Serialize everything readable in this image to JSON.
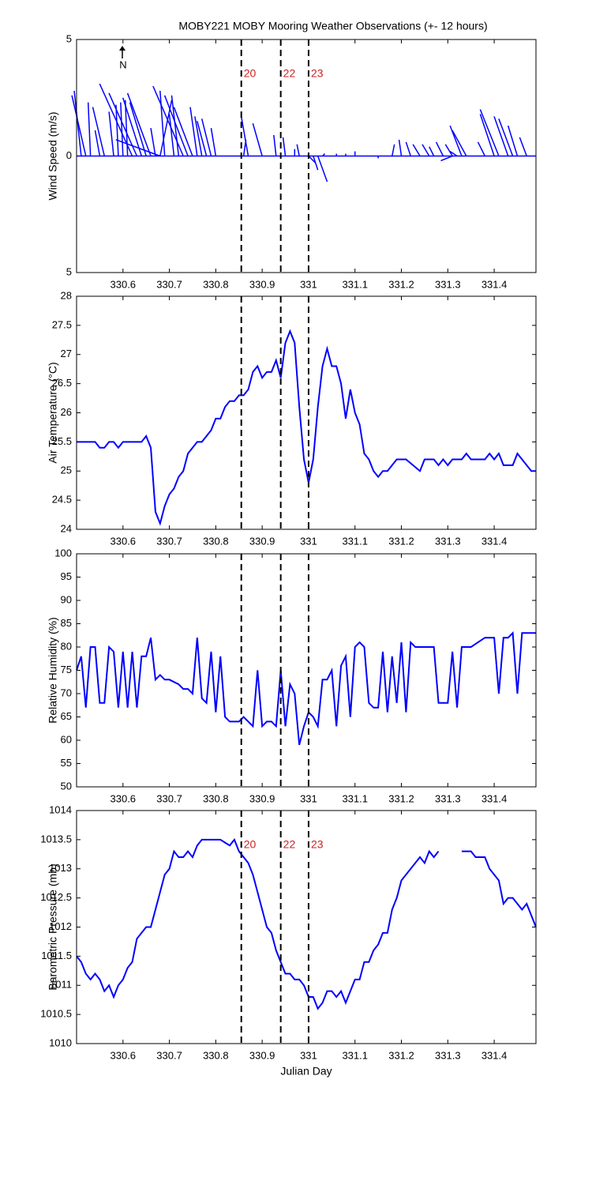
{
  "chart_data": [
    {
      "type": "stick",
      "title": "MOBY221 MOBY Mooring Weather Observations (+- 12 hours)",
      "ylabel": "Wind Speed (m/s)",
      "annotation": "N",
      "color": "#0000ff",
      "xlim": [
        330.5,
        331.49
      ],
      "xticks": [
        330.6,
        330.7,
        330.8,
        330.9,
        331,
        331.1,
        331.2,
        331.3,
        331.4
      ],
      "ylim": [
        -5,
        5
      ],
      "yticks": [
        {
          "value": -5,
          "label": "5"
        },
        0,
        5
      ],
      "vlines": [
        330.855,
        330.94,
        331.0
      ],
      "vline_labels": [
        "20",
        "22",
        "23"
      ],
      "x": [
        330.51,
        330.52,
        330.53,
        330.55,
        330.56,
        330.58,
        330.59,
        330.6,
        330.61,
        330.62,
        330.63,
        330.64,
        330.65,
        330.66,
        330.67,
        330.68,
        330.68,
        330.69,
        330.71,
        330.72,
        330.73,
        330.74,
        330.75,
        330.76,
        330.77,
        330.78,
        330.79,
        330.8,
        330.86,
        330.87,
        330.9,
        330.93,
        330.95,
        330.97,
        330.98,
        331.0,
        331.01,
        331.02,
        331.03,
        331.06,
        331.08,
        331.1,
        331.15,
        331.18,
        331.2,
        331.22,
        331.24,
        331.26,
        331.27,
        331.29,
        331.31,
        331.31,
        331.32,
        331.33,
        331.34,
        331.38,
        331.4,
        331.41,
        331.43,
        331.44,
        331.45,
        331.47
      ],
      "u": [
        -0.3,
        -0.6,
        -0.1,
        -0.2,
        -0.5,
        -0.2,
        -0.1,
        -0.1,
        -0.1,
        -1.4,
        -1.2,
        -0.8,
        -0.7,
        -1.0,
        -0.2,
        0.5,
        -1.9,
        -0.2,
        -0.2,
        -0.3,
        -1.3,
        -1.0,
        -0.8,
        -0.3,
        -0.3,
        -0.4,
        -0.4,
        -0.2,
        0.1,
        -0.3,
        -0.4,
        -0.1,
        -0.1,
        0.0,
        -0.1,
        0.3,
        0.2,
        0.4,
        0.1,
        0.0,
        0.0,
        0.0,
        0.0,
        0.1,
        -0.1,
        -0.2,
        -0.3,
        -0.3,
        -0.2,
        -0.3,
        -0.3,
        -0.5,
        -0.3,
        -0.5,
        -0.6,
        -0.3,
        -0.6,
        -0.8,
        -0.6,
        -0.6,
        -0.4,
        -0.3
      ],
      "v": [
        2.8,
        2.6,
        2.3,
        1.1,
        2.1,
        1.9,
        2.2,
        2.3,
        2.4,
        3.1,
        2.7,
        2.5,
        2.3,
        2.7,
        1.2,
        2.4,
        0.7,
        2.8,
        1.8,
        2.6,
        3.0,
        2.6,
        2.1,
        2.1,
        1.7,
        1.5,
        1.6,
        1.2,
        0.7,
        1.7,
        1.4,
        0.9,
        0.8,
        0.3,
        0.5,
        -0.3,
        -0.6,
        -1.1,
        0.1,
        0.1,
        0.1,
        0.2,
        -0.1,
        0.5,
        0.7,
        0.6,
        0.5,
        0.5,
        0.4,
        0.6,
        0.5,
        -0.2,
        0.2,
        1.3,
        1.1,
        0.6,
        1.8,
        2.0,
        1.7,
        1.6,
        1.3,
        0.8
      ]
    },
    {
      "type": "line",
      "ylabel": "Air Temperature (°C)",
      "color": "#0000ff",
      "xlim": [
        330.5,
        331.49
      ],
      "xticks": [
        330.6,
        330.7,
        330.8,
        330.9,
        331,
        331.1,
        331.2,
        331.3,
        331.4
      ],
      "ylim": [
        24,
        28
      ],
      "yticks": [
        24,
        24.5,
        25,
        25.5,
        26,
        26.5,
        27,
        27.5,
        28
      ],
      "vlines": [
        330.855,
        330.94,
        331.0
      ],
      "x": [
        330.5,
        330.54,
        330.55,
        330.56,
        330.57,
        330.58,
        330.59,
        330.6,
        330.64,
        330.65,
        330.66,
        330.67,
        330.68,
        330.69,
        330.7,
        330.71,
        330.72,
        330.73,
        330.74,
        330.75,
        330.76,
        330.77,
        330.78,
        330.79,
        330.8,
        330.81,
        330.82,
        330.83,
        330.84,
        330.85,
        330.86,
        330.87,
        330.88,
        330.89,
        330.9,
        330.91,
        330.92,
        330.93,
        330.94,
        330.95,
        330.96,
        330.97,
        330.98,
        330.99,
        331.0,
        331.01,
        331.02,
        331.03,
        331.04,
        331.05,
        331.06,
        331.07,
        331.08,
        331.09,
        331.1,
        331.11,
        331.12,
        331.13,
        331.14,
        331.15,
        331.16,
        331.17,
        331.18,
        331.19,
        331.21,
        331.24,
        331.25,
        331.27,
        331.28,
        331.29,
        331.3,
        331.31,
        331.33,
        331.34,
        331.35,
        331.38,
        331.39,
        331.4,
        331.41,
        331.42,
        331.44,
        331.45,
        331.48,
        331.49
      ],
      "values": [
        25.5,
        25.5,
        25.4,
        25.4,
        25.5,
        25.5,
        25.4,
        25.5,
        25.5,
        25.6,
        25.4,
        24.3,
        24.1,
        24.4,
        24.6,
        24.7,
        24.9,
        25.0,
        25.3,
        25.4,
        25.5,
        25.5,
        25.6,
        25.7,
        25.9,
        25.9,
        26.1,
        26.2,
        26.2,
        26.3,
        26.3,
        26.4,
        26.7,
        26.8,
        26.6,
        26.7,
        26.7,
        26.9,
        26.6,
        27.2,
        27.4,
        27.2,
        26.1,
        25.2,
        24.8,
        25.2,
        26.1,
        26.8,
        27.1,
        26.8,
        26.8,
        26.5,
        25.9,
        26.4,
        26.0,
        25.8,
        25.3,
        25.2,
        25.0,
        24.9,
        25.0,
        25.0,
        25.1,
        25.2,
        25.2,
        25.0,
        25.2,
        25.2,
        25.1,
        25.2,
        25.1,
        25.2,
        25.2,
        25.3,
        25.2,
        25.2,
        25.3,
        25.2,
        25.3,
        25.1,
        25.1,
        25.3,
        25.0,
        25.0
      ]
    },
    {
      "type": "line",
      "ylabel": "Relative Humidity (%)",
      "color": "#0000ff",
      "xlim": [
        330.5,
        331.49
      ],
      "xticks": [
        330.6,
        330.7,
        330.8,
        330.9,
        331,
        331.1,
        331.2,
        331.3,
        331.4
      ],
      "ylim": [
        50,
        100
      ],
      "yticks": [
        50,
        55,
        60,
        65,
        70,
        75,
        80,
        85,
        90,
        95,
        100
      ],
      "vlines": [
        330.855,
        330.94,
        331.0
      ],
      "x": [
        330.5,
        330.51,
        330.52,
        330.53,
        330.54,
        330.55,
        330.56,
        330.57,
        330.58,
        330.59,
        330.6,
        330.61,
        330.62,
        330.63,
        330.64,
        330.65,
        330.66,
        330.67,
        330.68,
        330.69,
        330.7,
        330.72,
        330.73,
        330.74,
        330.75,
        330.76,
        330.77,
        330.78,
        330.79,
        330.8,
        330.81,
        330.82,
        330.83,
        330.85,
        330.86,
        330.88,
        330.89,
        330.9,
        330.91,
        330.92,
        330.93,
        330.94,
        330.95,
        330.96,
        330.97,
        330.98,
        330.99,
        331.0,
        331.01,
        331.02,
        331.03,
        331.04,
        331.05,
        331.06,
        331.07,
        331.08,
        331.09,
        331.1,
        331.11,
        331.12,
        331.13,
        331.14,
        331.15,
        331.16,
        331.17,
        331.18,
        331.19,
        331.2,
        331.21,
        331.22,
        331.23,
        331.27,
        331.28,
        331.3,
        331.31,
        331.32,
        331.33,
        331.35,
        331.38,
        331.4,
        331.41,
        331.42,
        331.43,
        331.44,
        331.45,
        331.46,
        331.49
      ],
      "values": [
        75,
        78,
        67,
        80,
        80,
        68,
        68,
        80,
        79,
        67,
        79,
        67,
        79,
        67,
        78,
        78,
        82,
        73,
        74,
        73,
        73,
        72,
        71,
        71,
        70,
        82,
        69,
        68,
        79,
        66,
        78,
        65,
        64,
        64,
        65,
        63,
        75,
        63,
        64,
        64,
        63,
        75,
        63,
        72,
        70,
        59,
        63,
        66,
        65,
        63,
        73,
        73,
        75,
        63,
        76,
        78,
        65,
        80,
        81,
        80,
        68,
        67,
        67,
        79,
        66,
        78,
        68,
        81,
        66,
        81,
        80,
        80,
        68,
        68,
        79,
        67,
        80,
        80,
        82,
        82,
        70,
        82,
        82,
        83,
        70,
        83,
        83
      ]
    },
    {
      "type": "line",
      "ylabel": "Barometric Pressure (mb)",
      "xlabel": "Julian Day",
      "color": "#0000ff",
      "xlim": [
        330.5,
        331.49
      ],
      "xticks": [
        330.6,
        330.7,
        330.8,
        330.9,
        331,
        331.1,
        331.2,
        331.3,
        331.4
      ],
      "ylim": [
        1010,
        1014
      ],
      "yticks": [
        1010,
        1010.5,
        1011,
        1011.5,
        1012,
        1012.5,
        1013,
        1013.5,
        1014
      ],
      "vlines": [
        330.855,
        330.94,
        331.0
      ],
      "vline_labels": [
        "20",
        "22",
        "23"
      ],
      "x": [
        330.5,
        330.51,
        330.52,
        330.53,
        330.54,
        330.55,
        330.56,
        330.57,
        330.58,
        330.59,
        330.6,
        330.61,
        330.62,
        330.63,
        330.64,
        330.65,
        330.66,
        330.67,
        330.68,
        330.69,
        330.7,
        330.71,
        330.72,
        330.73,
        330.74,
        330.75,
        330.76,
        330.77,
        330.78,
        330.81,
        330.83,
        330.84,
        330.85,
        330.86,
        330.87,
        330.88,
        330.89,
        330.9,
        330.91,
        330.92,
        330.93,
        330.94,
        330.95,
        330.96,
        330.97,
        330.98,
        330.99,
        331.0,
        331.01,
        331.02,
        331.03,
        331.04,
        331.05,
        331.06,
        331.07,
        331.08,
        331.09,
        331.1,
        331.11,
        331.12,
        331.13,
        331.14,
        331.15,
        331.16,
        331.17,
        331.18,
        331.19,
        331.2,
        331.21,
        331.22,
        331.23,
        331.24,
        331.25,
        331.26,
        331.27,
        331.28,
        331.3,
        331.33,
        331.35,
        331.36,
        331.38,
        331.39,
        331.41,
        331.42,
        331.43,
        331.44,
        331.46,
        331.47,
        331.49
      ],
      "values": [
        1011.5,
        1011.4,
        1011.2,
        1011.1,
        1011.2,
        1011.1,
        1010.9,
        1011.0,
        1010.8,
        1011.0,
        1011.1,
        1011.3,
        1011.4,
        1011.8,
        1011.9,
        1012.0,
        1012.0,
        1012.3,
        1012.6,
        1012.9,
        1013.0,
        1013.3,
        1013.2,
        1013.2,
        1013.3,
        1013.2,
        1013.4,
        1013.5,
        1013.5,
        1013.5,
        1013.4,
        1013.5,
        1013.3,
        1013.2,
        1013.1,
        1012.9,
        1012.6,
        1012.3,
        1012.0,
        1011.9,
        1011.6,
        1011.4,
        1011.2,
        1011.2,
        1011.1,
        1011.1,
        1011.0,
        1010.8,
        1010.8,
        1010.6,
        1010.7,
        1010.9,
        1010.9,
        1010.8,
        1010.9,
        1010.7,
        1010.9,
        1011.1,
        1011.1,
        1011.4,
        1011.4,
        1011.6,
        1011.7,
        1011.9,
        1011.9,
        1012.3,
        1012.5,
        1012.8,
        1012.9,
        1013.0,
        1013.1,
        1013.2,
        1013.1,
        1013.3,
        1013.2,
        1013.3,
        null,
        1013.3,
        1013.3,
        1013.2,
        1013.2,
        1013.0,
        1012.8,
        1012.4,
        1012.5,
        1012.5,
        1012.3,
        1012.4,
        1012.0
      ]
    }
  ]
}
